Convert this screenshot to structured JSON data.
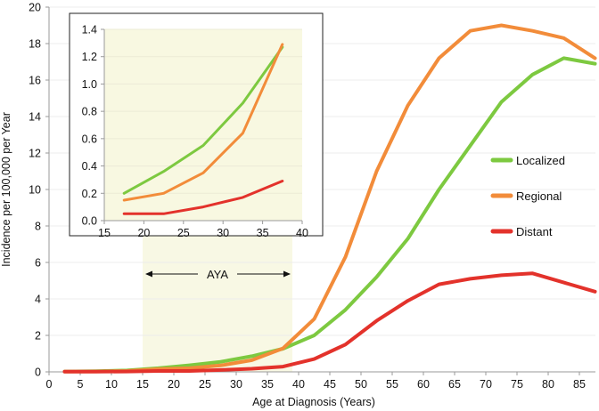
{
  "chart_data": [
    {
      "type": "line",
      "title": "",
      "xlabel": "Age at Diagnosis (Years)",
      "ylabel": "Incidence per 100,000 per Year",
      "xlim": [
        0,
        90
      ],
      "ylim": [
        0,
        20
      ],
      "x_ticks": [
        0,
        5,
        10,
        15,
        20,
        25,
        30,
        35,
        40,
        45,
        50,
        55,
        60,
        65,
        70,
        75,
        80,
        85
      ],
      "y_ticks": [
        0,
        2,
        4,
        6,
        8,
        10,
        12,
        14,
        16,
        18,
        20
      ],
      "grid": true,
      "legend_position": "right",
      "x": [
        2.5,
        7.5,
        12.5,
        17.5,
        22.5,
        27.5,
        32.5,
        37.5,
        42.5,
        47.5,
        52.5,
        57.5,
        62.5,
        67.5,
        72.5,
        77.5,
        82.5,
        87.5
      ],
      "series": [
        {
          "name": "Localized",
          "color": "#7dc940",
          "values": [
            0.02,
            0.04,
            0.08,
            0.2,
            0.36,
            0.55,
            0.86,
            1.27,
            2.0,
            3.4,
            5.2,
            7.3,
            10.0,
            12.4,
            14.8,
            16.3,
            17.2,
            16.9
          ]
        },
        {
          "name": "Regional",
          "color": "#f28c3a",
          "values": [
            0.01,
            0.02,
            0.05,
            0.15,
            0.2,
            0.35,
            0.64,
            1.29,
            2.9,
            6.3,
            11.0,
            14.6,
            17.2,
            18.7,
            19.0,
            18.7,
            18.3,
            17.2
          ]
        },
        {
          "name": "Distant",
          "color": "#e3322b",
          "values": [
            0.01,
            0.01,
            0.02,
            0.05,
            0.05,
            0.1,
            0.17,
            0.29,
            0.7,
            1.5,
            2.8,
            3.9,
            4.8,
            5.1,
            5.3,
            5.4,
            4.9,
            4.4
          ]
        }
      ],
      "annotations": [
        {
          "label": "AYA",
          "x_range": [
            15,
            39
          ],
          "shaded": true,
          "shade_color": "#f8f8e4"
        }
      ]
    },
    {
      "type": "line",
      "title": "inset (AYA range)",
      "xlabel": "",
      "ylabel": "",
      "xlim": [
        15,
        40
      ],
      "ylim": [
        0,
        1.4
      ],
      "x_ticks": [
        15,
        20,
        25,
        30,
        35,
        40
      ],
      "y_ticks": [
        "0.0",
        "0.2",
        "0.4",
        "0.6",
        "0.8",
        "1.0",
        "1.2",
        "1.4"
      ],
      "background": "#f8f8e1",
      "x": [
        17.5,
        22.5,
        27.5,
        32.5,
        37.5
      ],
      "series": [
        {
          "name": "Localized",
          "color": "#7dc940",
          "values": [
            0.2,
            0.36,
            0.55,
            0.86,
            1.27
          ]
        },
        {
          "name": "Regional",
          "color": "#f28c3a",
          "values": [
            0.15,
            0.2,
            0.35,
            0.64,
            1.29
          ]
        },
        {
          "name": "Distant",
          "color": "#e3322b",
          "values": [
            0.05,
            0.05,
            0.1,
            0.17,
            0.29
          ]
        }
      ]
    }
  ]
}
